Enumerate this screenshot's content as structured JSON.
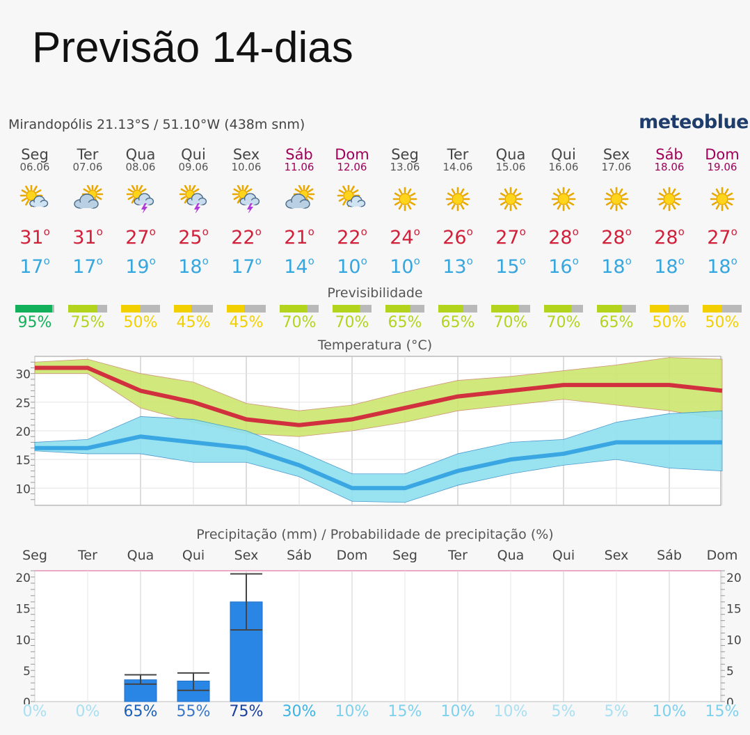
{
  "title": "Previsão 14-dias",
  "location": "Mirandopólis  21.13°S / 51.10°W (438m snm)",
  "brand": "meteoblue",
  "section_labels": {
    "predictability": "Previsibilidade",
    "temperature": "Temperatura (°C)",
    "precipitation": "Precipitação (mm) / Probabilidade de precipitação (%)"
  },
  "days": [
    {
      "name": "Seg",
      "date": "06.06",
      "weekend": false,
      "icon": "sun-cloud-icon",
      "tmax": "31",
      "tmin": "17",
      "predict": "95%",
      "predict_frac": 0.95,
      "predict_color": "#12b05a",
      "precip_prob": "0%",
      "prob_color": "#a8dff2"
    },
    {
      "name": "Ter",
      "date": "07.06",
      "weekend": false,
      "icon": "cloud-sun-icon",
      "tmax": "31",
      "tmin": "17",
      "predict": "75%",
      "predict_frac": 0.75,
      "predict_color": "#b2d41d",
      "precip_prob": "0%",
      "prob_color": "#a8dff2"
    },
    {
      "name": "Qua",
      "date": "08.06",
      "weekend": false,
      "icon": "thunder-icon",
      "tmax": "27",
      "tmin": "19",
      "predict": "50%",
      "predict_frac": 0.5,
      "predict_color": "#f2d000",
      "precip_prob": "65%",
      "prob_color": "#1c5fb8"
    },
    {
      "name": "Qui",
      "date": "09.06",
      "weekend": false,
      "icon": "thunder-icon",
      "tmax": "25",
      "tmin": "18",
      "predict": "45%",
      "predict_frac": 0.45,
      "predict_color": "#f2d000",
      "precip_prob": "55%",
      "prob_color": "#3a76c8"
    },
    {
      "name": "Sex",
      "date": "10.06",
      "weekend": false,
      "icon": "thunder-icon",
      "tmax": "22",
      "tmin": "17",
      "predict": "45%",
      "predict_frac": 0.45,
      "predict_color": "#f2d000",
      "precip_prob": "75%",
      "prob_color": "#1a3f9c"
    },
    {
      "name": "Sáb",
      "date": "11.06",
      "weekend": true,
      "icon": "cloud-sun-icon",
      "tmax": "21",
      "tmin": "14",
      "predict": "70%",
      "predict_frac": 0.7,
      "predict_color": "#b2d41d",
      "precip_prob": "30%",
      "prob_color": "#3ab4e6"
    },
    {
      "name": "Dom",
      "date": "12.06",
      "weekend": true,
      "icon": "sun-cloud-icon",
      "tmax": "22",
      "tmin": "10",
      "predict": "70%",
      "predict_frac": 0.7,
      "predict_color": "#b2d41d",
      "precip_prob": "10%",
      "prob_color": "#7dd0ee"
    },
    {
      "name": "Seg",
      "date": "13.06",
      "weekend": false,
      "icon": "sun-icon",
      "tmax": "24",
      "tmin": "10",
      "predict": "65%",
      "predict_frac": 0.65,
      "predict_color": "#b2d41d",
      "precip_prob": "15%",
      "prob_color": "#7dd0ee"
    },
    {
      "name": "Ter",
      "date": "14.06",
      "weekend": false,
      "icon": "sun-icon",
      "tmax": "26",
      "tmin": "13",
      "predict": "65%",
      "predict_frac": 0.65,
      "predict_color": "#b2d41d",
      "precip_prob": "10%",
      "prob_color": "#7dd0ee"
    },
    {
      "name": "Qua",
      "date": "15.06",
      "weekend": false,
      "icon": "sun-icon",
      "tmax": "27",
      "tmin": "15",
      "predict": "70%",
      "predict_frac": 0.7,
      "predict_color": "#b2d41d",
      "precip_prob": "10%",
      "prob_color": "#a8dff2"
    },
    {
      "name": "Qui",
      "date": "16.06",
      "weekend": false,
      "icon": "sun-icon",
      "tmax": "28",
      "tmin": "16",
      "predict": "70%",
      "predict_frac": 0.7,
      "predict_color": "#b2d41d",
      "precip_prob": "5%",
      "prob_color": "#a8dff2"
    },
    {
      "name": "Sex",
      "date": "17.06",
      "weekend": false,
      "icon": "sun-icon",
      "tmax": "28",
      "tmin": "18",
      "predict": "65%",
      "predict_frac": 0.65,
      "predict_color": "#b2d41d",
      "precip_prob": "5%",
      "prob_color": "#a8dff2"
    },
    {
      "name": "Sáb",
      "date": "18.06",
      "weekend": true,
      "icon": "sun-icon",
      "tmax": "28",
      "tmin": "18",
      "predict": "50%",
      "predict_frac": 0.5,
      "predict_color": "#f2d000",
      "precip_prob": "10%",
      "prob_color": "#7dd0ee"
    },
    {
      "name": "Dom",
      "date": "19.06",
      "weekend": true,
      "icon": "sun-icon",
      "tmax": "27",
      "tmin": "18",
      "predict": "50%",
      "predict_frac": 0.5,
      "predict_color": "#f2d000",
      "precip_prob": "15%",
      "prob_color": "#7dd0ee"
    }
  ],
  "chart_data": [
    {
      "type": "line",
      "x": [
        "Seg",
        "Ter",
        "Qua",
        "Qui",
        "Sex",
        "Sáb",
        "Dom",
        "Seg",
        "Ter",
        "Qua",
        "Qui",
        "Sex",
        "Sáb",
        "Dom"
      ],
      "ylim": [
        7,
        33
      ],
      "yticks": [
        10,
        15,
        20,
        25,
        30
      ],
      "grid": true,
      "series": [
        {
          "name": "max",
          "color": "#d1303e",
          "values": [
            31,
            31,
            27,
            25,
            22,
            21,
            22,
            24,
            26,
            27,
            28,
            28,
            28,
            27
          ],
          "band_low": [
            30,
            30,
            24,
            21.5,
            19.5,
            19,
            20,
            21.5,
            23.5,
            24.5,
            25.5,
            24.5,
            23.5,
            22
          ],
          "band_high": [
            32,
            32.5,
            30,
            28.5,
            24.8,
            23.5,
            24.5,
            26.8,
            28.8,
            29.5,
            30.5,
            31.5,
            32.8,
            32.5
          ],
          "band_color": "#cde66e"
        },
        {
          "name": "min",
          "color": "#3aa6e2",
          "values": [
            17,
            17,
            19,
            18,
            17,
            14,
            10,
            10,
            13,
            15,
            16,
            18,
            18,
            18
          ],
          "band_low": [
            16.5,
            16,
            16,
            14.5,
            14.5,
            12,
            7.7,
            7.5,
            10.5,
            12.5,
            14,
            15,
            13.5,
            13
          ],
          "band_high": [
            18,
            18.5,
            22.5,
            22,
            20,
            16.5,
            12.5,
            12.5,
            16,
            18,
            18.5,
            21.5,
            23,
            23.5
          ],
          "band_color": "#8fe1f0"
        }
      ]
    },
    {
      "type": "bar",
      "categories": [
        "Seg",
        "Ter",
        "Qua",
        "Qui",
        "Sex",
        "Sáb",
        "Dom",
        "Seg",
        "Ter",
        "Qua",
        "Qui",
        "Sex",
        "Sáb",
        "Dom"
      ],
      "values": [
        0,
        0,
        3.5,
        3.3,
        16,
        0,
        0,
        0,
        0,
        0,
        0,
        0,
        0,
        0
      ],
      "error_low": [
        null,
        null,
        2.8,
        1.8,
        11.5,
        null,
        null,
        null,
        null,
        null,
        null,
        null,
        null,
        null
      ],
      "error_high": [
        null,
        null,
        4.3,
        4.6,
        20.5,
        null,
        null,
        null,
        null,
        null,
        null,
        null,
        null,
        null
      ],
      "ylim": [
        0,
        21
      ],
      "yticks": [
        0,
        5,
        10,
        15,
        20
      ],
      "color": "#2a86e4",
      "probability": [
        "0%",
        "0%",
        "65%",
        "55%",
        "75%",
        "30%",
        "10%",
        "15%",
        "10%",
        "10%",
        "5%",
        "5%",
        "10%",
        "15%"
      ]
    }
  ]
}
